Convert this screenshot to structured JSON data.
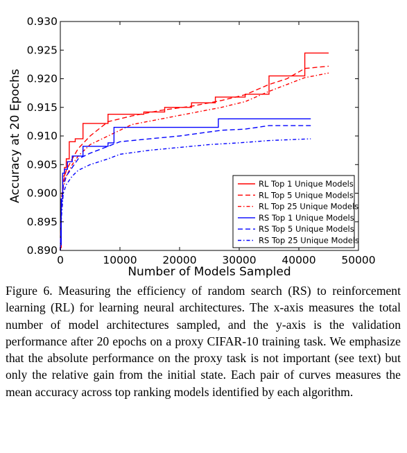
{
  "chart_data": {
    "type": "line",
    "xlabel": "Number of Models Sampled",
    "ylabel": "Accuracy at 20 Epochs",
    "xlim": [
      0,
      50000
    ],
    "ylim": [
      0.89,
      0.93
    ],
    "xticks": [
      0,
      10000,
      20000,
      30000,
      40000,
      50000
    ],
    "xtick_labels": [
      "0",
      "10000",
      "20000",
      "30000",
      "40000",
      "50000"
    ],
    "yticks": [
      0.89,
      0.895,
      0.9,
      0.905,
      0.91,
      0.915,
      0.92,
      0.925,
      0.93
    ],
    "ytick_labels": [
      "0.890",
      "0.895",
      "0.900",
      "0.905",
      "0.910",
      "0.915",
      "0.920",
      "0.925",
      "0.930"
    ],
    "grid": false,
    "legend_position": "lower-right",
    "series": [
      {
        "name": "RL Top 1 Unique Models",
        "color": "#ff0000",
        "dash": "solid",
        "step": true,
        "x": [
          0,
          150,
          400,
          700,
          1000,
          1500,
          2500,
          3800,
          8000,
          14000,
          17500,
          22000,
          26000,
          31000,
          35000,
          41000,
          45000
        ],
        "y": [
          0.8905,
          0.899,
          0.903,
          0.9045,
          0.906,
          0.909,
          0.9095,
          0.9122,
          0.9138,
          0.9142,
          0.915,
          0.9158,
          0.9168,
          0.9173,
          0.9205,
          0.9245,
          0.9245
        ]
      },
      {
        "name": "RL Top 5 Unique Models",
        "color": "#ff0000",
        "dash": "dashed",
        "x": [
          0,
          200,
          500,
          1000,
          2000,
          3000,
          5000,
          8000,
          12000,
          17000,
          22000,
          27000,
          31000,
          35000,
          38000,
          41000,
          45000
        ],
        "y": [
          0.89,
          0.899,
          0.902,
          0.904,
          0.906,
          0.9078,
          0.91,
          0.9125,
          0.9135,
          0.9145,
          0.9152,
          0.9162,
          0.9172,
          0.919,
          0.92,
          0.9218,
          0.9222
        ]
      },
      {
        "name": "RL Top 25 Unique Models",
        "color": "#ff0000",
        "dash": "dashdot",
        "x": [
          0,
          200,
          500,
          1000,
          2000,
          3000,
          5000,
          8000,
          12000,
          17000,
          22000,
          27000,
          31000,
          35000,
          38000,
          41000,
          45000
        ],
        "y": [
          0.89,
          0.897,
          0.901,
          0.903,
          0.905,
          0.9065,
          0.9085,
          0.91,
          0.912,
          0.913,
          0.914,
          0.915,
          0.916,
          0.9178,
          0.919,
          0.9202,
          0.921
        ]
      },
      {
        "name": "RS Top 1 Unique Models",
        "color": "#0000ff",
        "dash": "solid",
        "step": true,
        "x": [
          0,
          150,
          400,
          700,
          1200,
          2000,
          3800,
          8000,
          9000,
          26500,
          42000
        ],
        "y": [
          0.891,
          0.899,
          0.9035,
          0.9042,
          0.9055,
          0.9065,
          0.9082,
          0.9088,
          0.9115,
          0.913,
          0.913
        ]
      },
      {
        "name": "RS Top 5 Unique Models",
        "color": "#0000ff",
        "dash": "dashed",
        "x": [
          0,
          200,
          500,
          1000,
          2000,
          3000,
          5000,
          8000,
          10000,
          15000,
          20000,
          27000,
          31000,
          35000,
          42000
        ],
        "y": [
          0.89,
          0.898,
          0.9015,
          0.903,
          0.9045,
          0.906,
          0.907,
          0.9082,
          0.909,
          0.9095,
          0.91,
          0.911,
          0.9112,
          0.9118,
          0.9118
        ]
      },
      {
        "name": "RS Top 25 Unique Models",
        "color": "#0000ff",
        "dash": "dashdot",
        "x": [
          0,
          200,
          500,
          1000,
          2000,
          3000,
          5000,
          8000,
          10000,
          15000,
          20000,
          25000,
          30000,
          35000,
          42000
        ],
        "y": [
          0.89,
          0.896,
          0.9,
          0.9015,
          0.903,
          0.904,
          0.905,
          0.906,
          0.9068,
          0.9075,
          0.908,
          0.9085,
          0.9088,
          0.9092,
          0.9095
        ]
      }
    ]
  },
  "caption": "Figure 6. Measuring the efficiency of random search (RS) to reinforcement learning (RL) for learning neural architectures. The x-axis measures the total number of model architectures sampled, and the y-axis is the validation performance after 20 epochs on a proxy CIFAR-10 training task. We emphasize that the absolute performance on the proxy task is not important (see text) but only the relative gain from the initial state. Each pair of curves measures the mean accuracy across top ranking models identified by each algorithm."
}
